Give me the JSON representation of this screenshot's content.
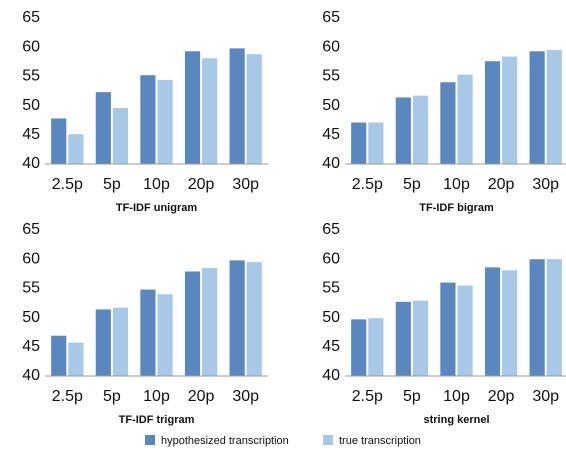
{
  "chart_data": [
    {
      "type": "bar",
      "title": "TF-IDF unigram",
      "categories": [
        "2.5p",
        "5p",
        "10p",
        "20p",
        "30p"
      ],
      "series": [
        {
          "name": "hypothesized transcription",
          "color": "#5b87c0",
          "values": [
            47.8,
            52.3,
            55.2,
            59.3,
            59.8
          ]
        },
        {
          "name": "true transcription",
          "color": "#a7c8e6",
          "values": [
            45.1,
            49.6,
            54.4,
            58.1,
            58.8
          ]
        }
      ],
      "ylim": [
        40,
        65
      ],
      "yticks": [
        40,
        45,
        50,
        55,
        60,
        65
      ],
      "grid": false
    },
    {
      "type": "bar",
      "title": "TF-IDF bigram",
      "categories": [
        "2.5p",
        "5p",
        "10p",
        "20p",
        "30p"
      ],
      "series": [
        {
          "color": "#5b87c0",
          "values": [
            47.1,
            51.4,
            54.0,
            57.6,
            59.3
          ]
        },
        {
          "color": "#a7c8e6",
          "values": [
            47.1,
            51.7,
            55.3,
            58.4,
            59.5
          ]
        }
      ],
      "ylim": [
        40,
        65
      ],
      "yticks": [
        40,
        45,
        50,
        55,
        60,
        65
      ],
      "grid": false
    },
    {
      "type": "bar",
      "title": "TF-IDF trigram",
      "categories": [
        "2.5p",
        "5p",
        "10p",
        "20p",
        "30p"
      ],
      "series": [
        {
          "color": "#5b87c0",
          "values": [
            46.9,
            51.4,
            54.8,
            57.9,
            59.8
          ]
        },
        {
          "color": "#a7c8e6",
          "values": [
            45.7,
            51.7,
            54.0,
            58.5,
            59.5
          ]
        }
      ],
      "ylim": [
        40,
        65
      ],
      "yticks": [
        40,
        45,
        50,
        55,
        60,
        65
      ],
      "grid": false
    },
    {
      "type": "bar",
      "title": "string kernel",
      "categories": [
        "2.5p",
        "5p",
        "10p",
        "20p",
        "30p"
      ],
      "series": [
        {
          "color": "#5b87c0",
          "values": [
            49.7,
            52.7,
            56.0,
            58.6,
            60.0
          ]
        },
        {
          "color": "#a7c8e6",
          "values": [
            49.9,
            52.9,
            55.5,
            58.1,
            60.0
          ]
        }
      ],
      "ylim": [
        40,
        65
      ],
      "yticks": [
        40,
        45,
        50,
        55,
        60,
        65
      ],
      "grid": false
    }
  ]
}
